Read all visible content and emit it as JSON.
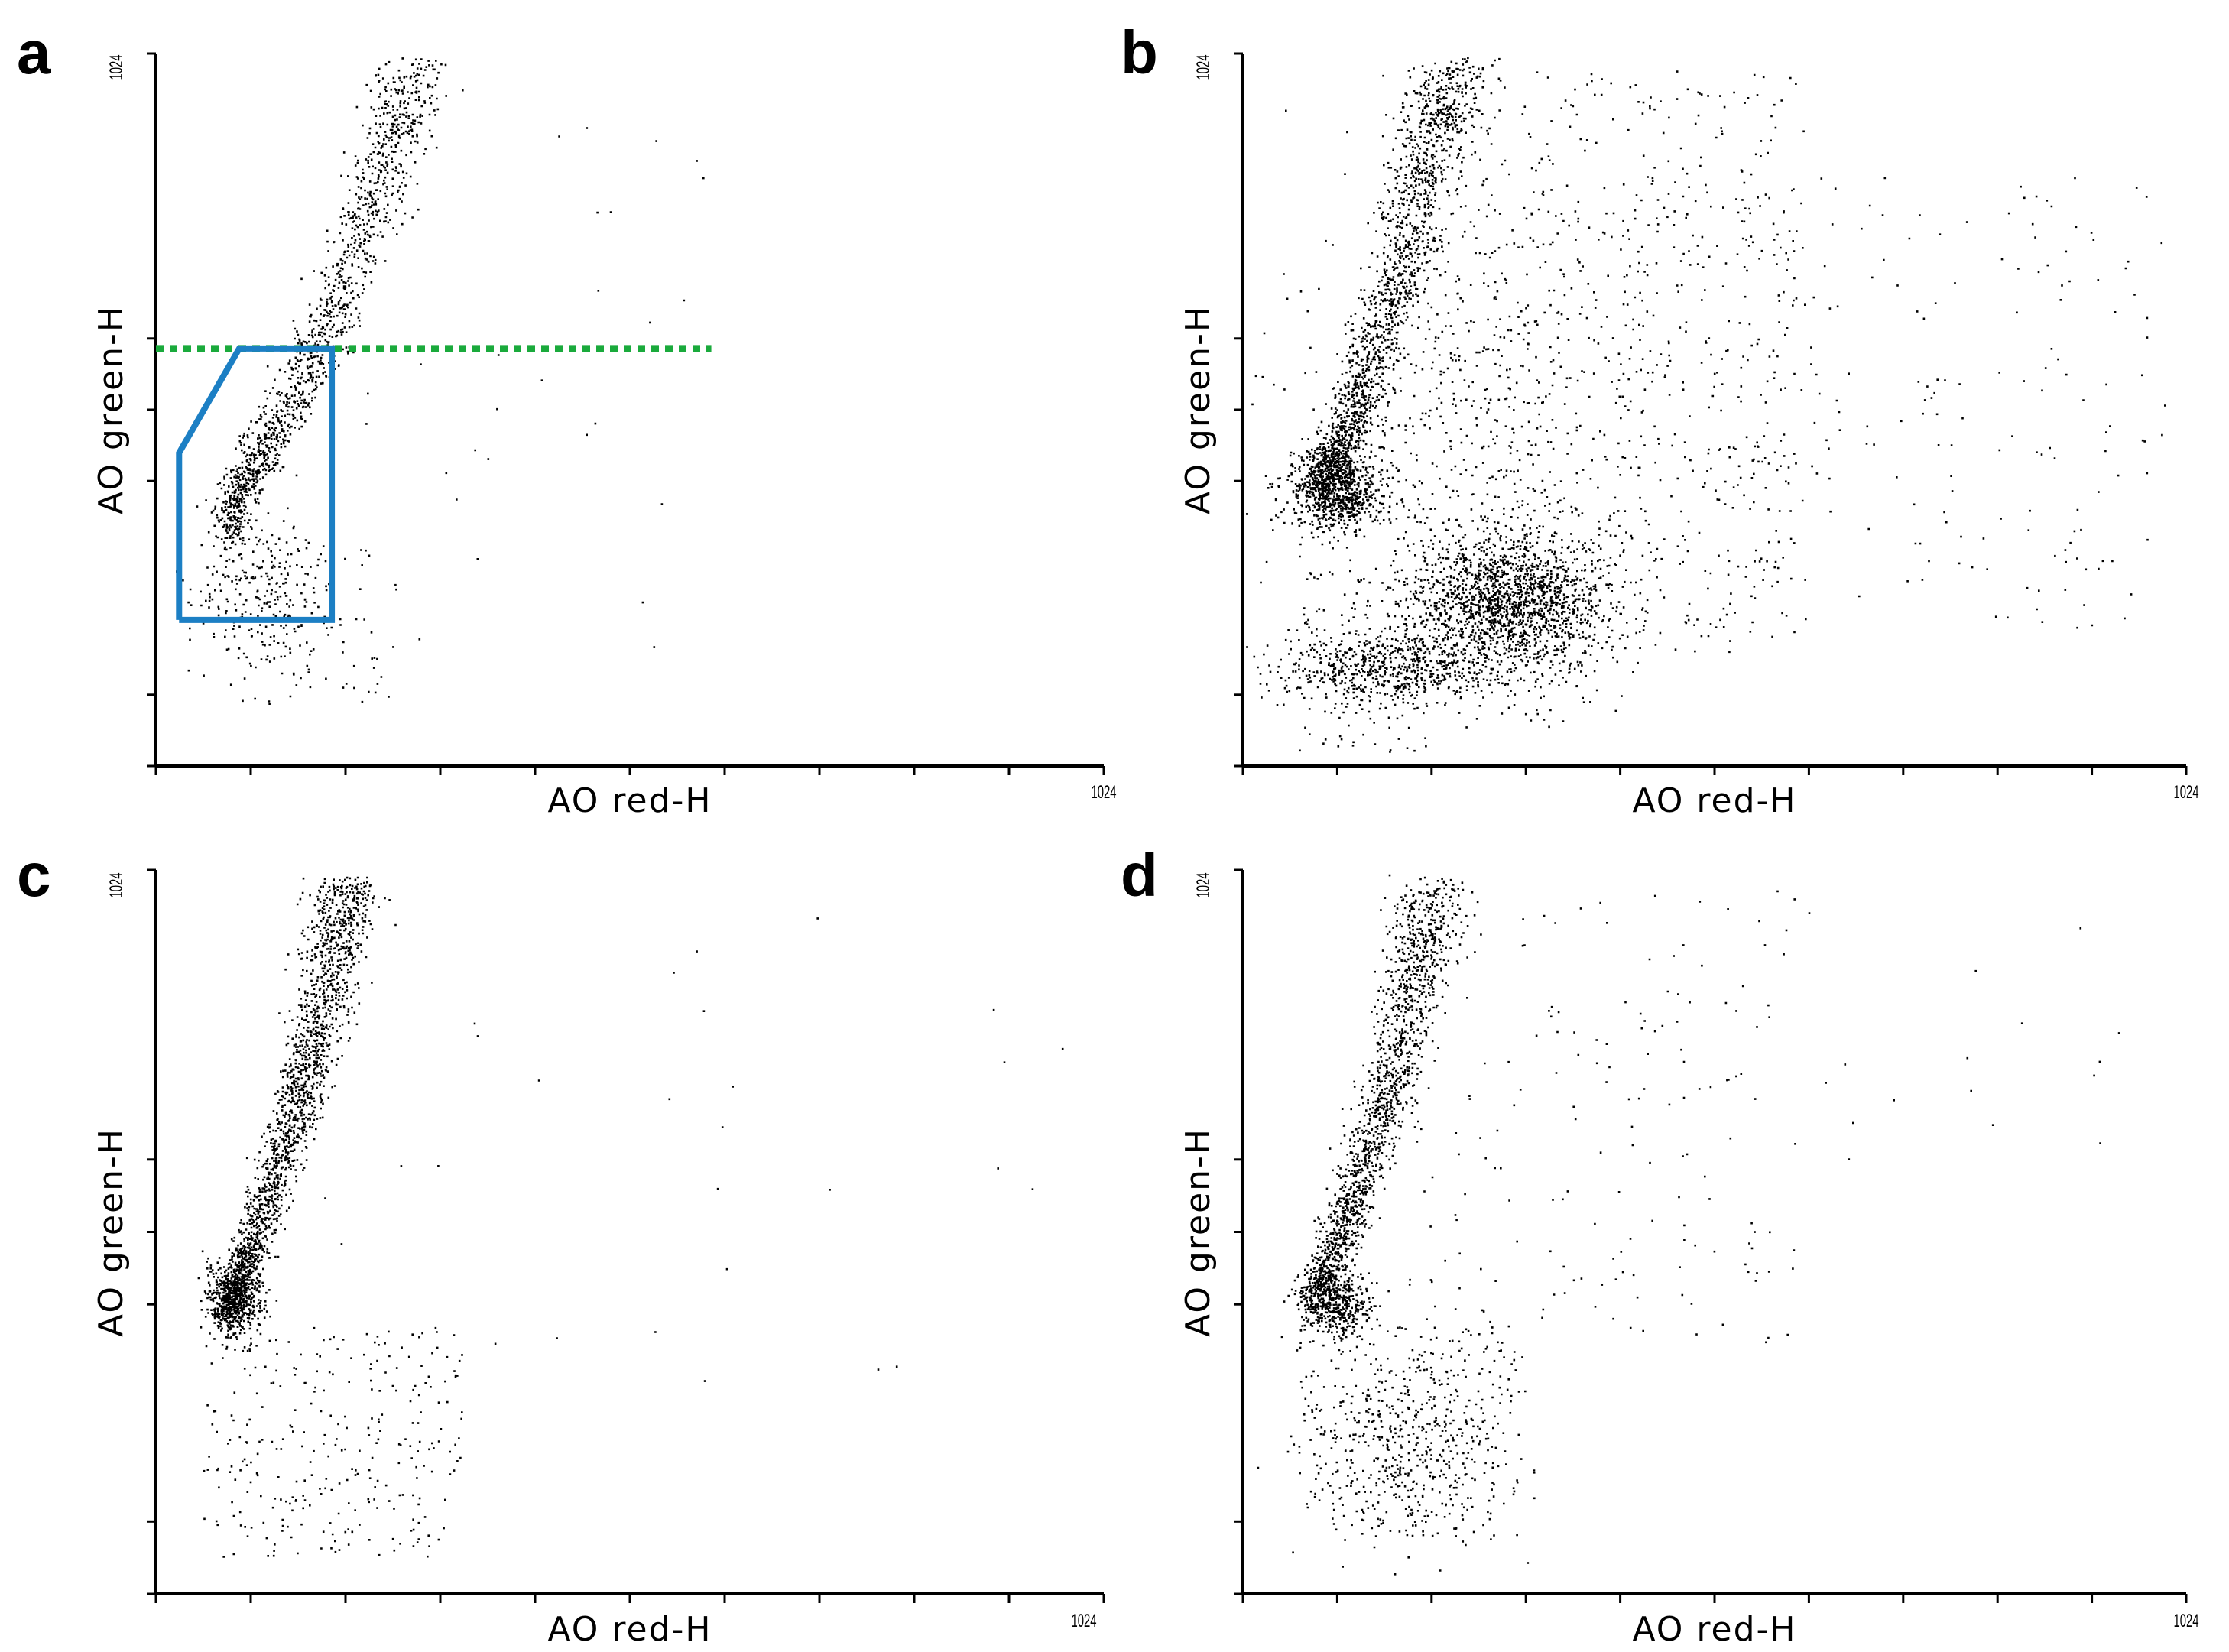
{
  "chart_data": [
    {
      "panel": "a",
      "type": "scatter",
      "xlabel": "AO red-H",
      "ylabel": "AO green-H",
      "x_max_label": "1024",
      "y_max_label": "1024",
      "xlim": [
        0,
        1024
      ],
      "ylim": [
        0,
        1024
      ],
      "grid": false,
      "x_ticks": [
        0,
        102.4,
        204.8,
        307.2,
        409.6,
        512,
        614.4,
        716.8,
        819.2,
        921.6,
        1024
      ],
      "y_ticks": [
        0,
        102.4,
        409.6,
        512,
        614.4,
        1024
      ],
      "threshold_line": {
        "y": 600,
        "x_from": 0,
        "x_to": 600,
        "color": "#1aaa3c"
      },
      "gate": {
        "color": "#1c7fc4",
        "polygon": [
          [
            25,
            210
          ],
          [
            25,
            450
          ],
          [
            90,
            600
          ],
          [
            190,
            600
          ],
          [
            190,
            210
          ],
          [
            25,
            210
          ]
        ]
      },
      "seed": 11,
      "clusters": [
        {
          "kind": "band",
          "n": 1400,
          "pts": [
            [
              75,
              330
            ],
            [
              95,
              410
            ],
            [
              120,
              470
            ],
            [
              160,
              560
            ],
            [
              190,
              650
            ],
            [
              225,
              780
            ],
            [
              255,
              900
            ],
            [
              275,
              1010
            ]
          ],
          "sx": 9,
          "sy": 14,
          "sx_grow": 12
        },
        {
          "kind": "blob",
          "n": 260,
          "cx": 110,
          "cy": 250,
          "sx": 40,
          "sy": 60
        },
        {
          "kind": "uniform",
          "n": 90,
          "x": [
            60,
            260
          ],
          "y": [
            90,
            330
          ]
        },
        {
          "kind": "uniform",
          "n": 30,
          "x": [
            200,
            600
          ],
          "y": [
            150,
            1000
          ]
        }
      ]
    },
    {
      "panel": "b",
      "type": "scatter",
      "xlabel": "AO red-H",
      "ylabel": "AO green-H",
      "x_max_label": "1024",
      "y_max_label": "1024",
      "xlim": [
        0,
        1024
      ],
      "ylim": [
        0,
        1024
      ],
      "grid": false,
      "x_ticks": [
        0,
        102.4,
        204.8,
        307.2,
        409.6,
        512,
        614.4,
        716.8,
        819.2,
        921.6,
        1024
      ],
      "y_ticks": [
        0,
        102.4,
        409.6,
        512,
        614.4,
        1024
      ],
      "seed": 22,
      "clusters": [
        {
          "kind": "band",
          "n": 1600,
          "pts": [
            [
              85,
              410
            ],
            [
              110,
              470
            ],
            [
              130,
              560
            ],
            [
              165,
              680
            ],
            [
              185,
              800
            ],
            [
              210,
              920
            ],
            [
              230,
              1010
            ]
          ],
          "sx": 10,
          "sy": 14,
          "sx_grow": 12
        },
        {
          "kind": "blob",
          "n": 900,
          "cx": 100,
          "cy": 400,
          "sx": 25,
          "sy": 30
        },
        {
          "kind": "blob",
          "n": 1800,
          "cx": 290,
          "cy": 230,
          "sx": 55,
          "sy": 55
        },
        {
          "kind": "blob",
          "n": 600,
          "cx": 150,
          "cy": 140,
          "sx": 60,
          "sy": 25
        },
        {
          "kind": "blob",
          "n": 500,
          "cx": 260,
          "cy": 520,
          "sx": 110,
          "sy": 160
        },
        {
          "kind": "uniform",
          "n": 700,
          "x": [
            150,
            600
          ],
          "y": [
            180,
            1000
          ]
        },
        {
          "kind": "uniform",
          "n": 240,
          "x": [
            400,
            1000
          ],
          "y": [
            200,
            850
          ]
        },
        {
          "kind": "uniform",
          "n": 150,
          "x": [
            60,
            200
          ],
          "y": [
            20,
            300
          ]
        }
      ]
    },
    {
      "panel": "c",
      "type": "scatter",
      "xlabel": "AO red-H",
      "ylabel": "AO green-H",
      "x_max_label": "1024",
      "y_max_label": "1024",
      "xlim": [
        0,
        1024
      ],
      "ylim": [
        0,
        1024
      ],
      "grid": false,
      "x_ticks": [
        0,
        102.4,
        204.8,
        307.2,
        409.6,
        512,
        614.4,
        716.8,
        819.2,
        921.6,
        1024
      ],
      "y_ticks": [
        0,
        102.4,
        409.6,
        512,
        614.4,
        1024
      ],
      "seed": 33,
      "clusters": [
        {
          "kind": "band",
          "n": 1900,
          "pts": [
            [
              75,
              390
            ],
            [
              95,
              460
            ],
            [
              120,
              560
            ],
            [
              150,
              670
            ],
            [
              170,
              780
            ],
            [
              190,
              900
            ],
            [
              205,
              1010
            ]
          ],
          "sx": 8,
          "sy": 12,
          "sx_grow": 10
        },
        {
          "kind": "blob",
          "n": 500,
          "cx": 85,
          "cy": 420,
          "sx": 15,
          "sy": 25
        },
        {
          "kind": "uniform",
          "n": 300,
          "x": [
            50,
            330
          ],
          "y": [
            50,
            380
          ]
        },
        {
          "kind": "uniform",
          "n": 30,
          "x": [
            180,
            1000
          ],
          "y": [
            300,
            1000
          ]
        }
      ]
    },
    {
      "panel": "d",
      "type": "scatter",
      "xlabel": "AO red-H",
      "ylabel": "AO green-H",
      "x_max_label": "1024",
      "y_max_label": "1024",
      "xlim": [
        0,
        1024
      ],
      "ylim": [
        0,
        1024
      ],
      "grid": false,
      "x_ticks": [
        0,
        102.4,
        204.8,
        307.2,
        409.6,
        512,
        614.4,
        716.8,
        819.2,
        921.6,
        1024
      ],
      "y_ticks": [
        0,
        102.4,
        409.6,
        512,
        614.4,
        1024
      ],
      "seed": 44,
      "clusters": [
        {
          "kind": "band",
          "n": 1700,
          "pts": [
            [
              75,
              410
            ],
            [
              95,
              470
            ],
            [
              120,
              560
            ],
            [
              150,
              680
            ],
            [
              170,
              780
            ],
            [
              190,
              900
            ],
            [
              210,
              1010
            ]
          ],
          "sx": 9,
          "sy": 12,
          "sx_grow": 12
        },
        {
          "kind": "blob",
          "n": 400,
          "cx": 100,
          "cy": 410,
          "sx": 20,
          "sy": 25
        },
        {
          "kind": "blob",
          "n": 450,
          "cx": 180,
          "cy": 220,
          "sx": 55,
          "sy": 70
        },
        {
          "kind": "uniform",
          "n": 250,
          "x": [
            60,
            300
          ],
          "y": [
            80,
            380
          ]
        },
        {
          "kind": "uniform",
          "n": 170,
          "x": [
            180,
            600
          ],
          "y": [
            350,
            1000
          ]
        },
        {
          "kind": "uniform",
          "n": 20,
          "x": [
            500,
            960
          ],
          "y": [
            600,
            1000
          ]
        }
      ]
    }
  ]
}
